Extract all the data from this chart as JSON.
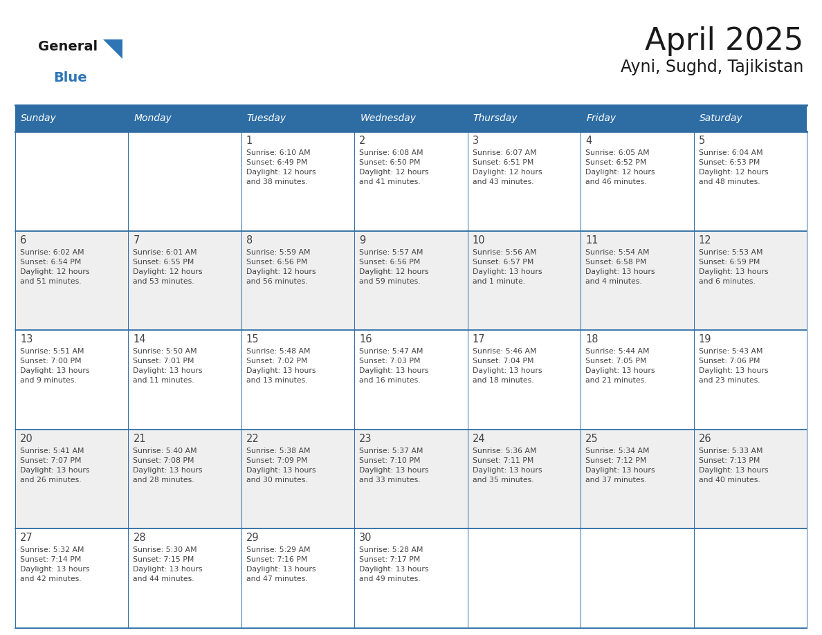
{
  "title": "April 2025",
  "subtitle": "Ayni, Sughd, Tajikistan",
  "days_of_week": [
    "Sunday",
    "Monday",
    "Tuesday",
    "Wednesday",
    "Thursday",
    "Friday",
    "Saturday"
  ],
  "header_bg": "#2E6DA4",
  "header_text": "#FFFFFF",
  "cell_bg_light": "#EFEFEF",
  "cell_bg_white": "#FFFFFF",
  "border_color": "#2E6DA4",
  "text_color": "#444444",
  "title_color": "#1a1a1a",
  "logo_general_color": "#1a1a1a",
  "logo_blue_color": "#2E75B6",
  "weeks": [
    [
      {
        "day": "",
        "info": ""
      },
      {
        "day": "",
        "info": ""
      },
      {
        "day": "1",
        "info": "Sunrise: 6:10 AM\nSunset: 6:49 PM\nDaylight: 12 hours\nand 38 minutes."
      },
      {
        "day": "2",
        "info": "Sunrise: 6:08 AM\nSunset: 6:50 PM\nDaylight: 12 hours\nand 41 minutes."
      },
      {
        "day": "3",
        "info": "Sunrise: 6:07 AM\nSunset: 6:51 PM\nDaylight: 12 hours\nand 43 minutes."
      },
      {
        "day": "4",
        "info": "Sunrise: 6:05 AM\nSunset: 6:52 PM\nDaylight: 12 hours\nand 46 minutes."
      },
      {
        "day": "5",
        "info": "Sunrise: 6:04 AM\nSunset: 6:53 PM\nDaylight: 12 hours\nand 48 minutes."
      }
    ],
    [
      {
        "day": "6",
        "info": "Sunrise: 6:02 AM\nSunset: 6:54 PM\nDaylight: 12 hours\nand 51 minutes."
      },
      {
        "day": "7",
        "info": "Sunrise: 6:01 AM\nSunset: 6:55 PM\nDaylight: 12 hours\nand 53 minutes."
      },
      {
        "day": "8",
        "info": "Sunrise: 5:59 AM\nSunset: 6:56 PM\nDaylight: 12 hours\nand 56 minutes."
      },
      {
        "day": "9",
        "info": "Sunrise: 5:57 AM\nSunset: 6:56 PM\nDaylight: 12 hours\nand 59 minutes."
      },
      {
        "day": "10",
        "info": "Sunrise: 5:56 AM\nSunset: 6:57 PM\nDaylight: 13 hours\nand 1 minute."
      },
      {
        "day": "11",
        "info": "Sunrise: 5:54 AM\nSunset: 6:58 PM\nDaylight: 13 hours\nand 4 minutes."
      },
      {
        "day": "12",
        "info": "Sunrise: 5:53 AM\nSunset: 6:59 PM\nDaylight: 13 hours\nand 6 minutes."
      }
    ],
    [
      {
        "day": "13",
        "info": "Sunrise: 5:51 AM\nSunset: 7:00 PM\nDaylight: 13 hours\nand 9 minutes."
      },
      {
        "day": "14",
        "info": "Sunrise: 5:50 AM\nSunset: 7:01 PM\nDaylight: 13 hours\nand 11 minutes."
      },
      {
        "day": "15",
        "info": "Sunrise: 5:48 AM\nSunset: 7:02 PM\nDaylight: 13 hours\nand 13 minutes."
      },
      {
        "day": "16",
        "info": "Sunrise: 5:47 AM\nSunset: 7:03 PM\nDaylight: 13 hours\nand 16 minutes."
      },
      {
        "day": "17",
        "info": "Sunrise: 5:46 AM\nSunset: 7:04 PM\nDaylight: 13 hours\nand 18 minutes."
      },
      {
        "day": "18",
        "info": "Sunrise: 5:44 AM\nSunset: 7:05 PM\nDaylight: 13 hours\nand 21 minutes."
      },
      {
        "day": "19",
        "info": "Sunrise: 5:43 AM\nSunset: 7:06 PM\nDaylight: 13 hours\nand 23 minutes."
      }
    ],
    [
      {
        "day": "20",
        "info": "Sunrise: 5:41 AM\nSunset: 7:07 PM\nDaylight: 13 hours\nand 26 minutes."
      },
      {
        "day": "21",
        "info": "Sunrise: 5:40 AM\nSunset: 7:08 PM\nDaylight: 13 hours\nand 28 minutes."
      },
      {
        "day": "22",
        "info": "Sunrise: 5:38 AM\nSunset: 7:09 PM\nDaylight: 13 hours\nand 30 minutes."
      },
      {
        "day": "23",
        "info": "Sunrise: 5:37 AM\nSunset: 7:10 PM\nDaylight: 13 hours\nand 33 minutes."
      },
      {
        "day": "24",
        "info": "Sunrise: 5:36 AM\nSunset: 7:11 PM\nDaylight: 13 hours\nand 35 minutes."
      },
      {
        "day": "25",
        "info": "Sunrise: 5:34 AM\nSunset: 7:12 PM\nDaylight: 13 hours\nand 37 minutes."
      },
      {
        "day": "26",
        "info": "Sunrise: 5:33 AM\nSunset: 7:13 PM\nDaylight: 13 hours\nand 40 minutes."
      }
    ],
    [
      {
        "day": "27",
        "info": "Sunrise: 5:32 AM\nSunset: 7:14 PM\nDaylight: 13 hours\nand 42 minutes."
      },
      {
        "day": "28",
        "info": "Sunrise: 5:30 AM\nSunset: 7:15 PM\nDaylight: 13 hours\nand 44 minutes."
      },
      {
        "day": "29",
        "info": "Sunrise: 5:29 AM\nSunset: 7:16 PM\nDaylight: 13 hours\nand 47 minutes."
      },
      {
        "day": "30",
        "info": "Sunrise: 5:28 AM\nSunset: 7:17 PM\nDaylight: 13 hours\nand 49 minutes."
      },
      {
        "day": "",
        "info": ""
      },
      {
        "day": "",
        "info": ""
      },
      {
        "day": "",
        "info": ""
      }
    ]
  ]
}
